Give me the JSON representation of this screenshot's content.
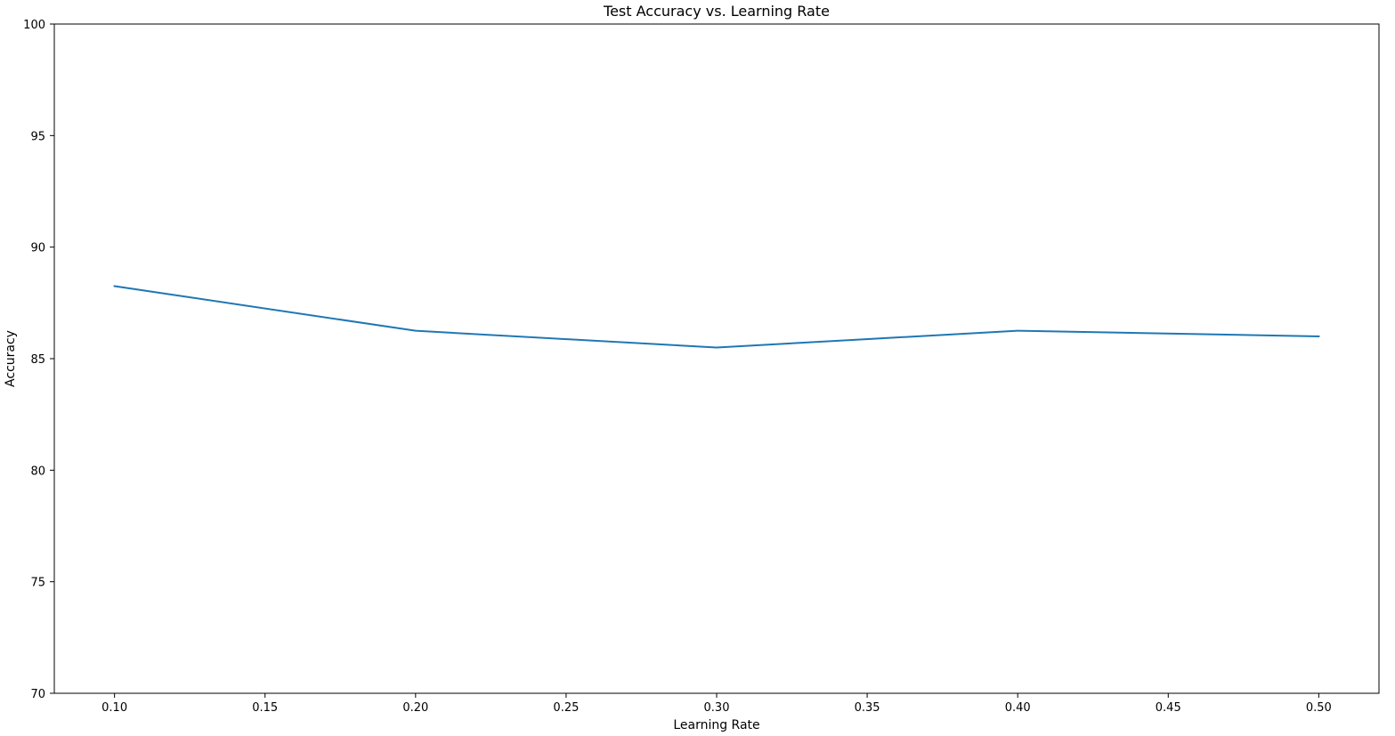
{
  "chart_data": {
    "type": "line",
    "title": "Test Accuracy vs. Learning Rate",
    "xlabel": "Learning Rate",
    "ylabel": "Accuracy",
    "xlim": [
      0.08,
      0.52
    ],
    "ylim": [
      70,
      100
    ],
    "x_ticks": [
      "0.10",
      "0.15",
      "0.20",
      "0.25",
      "0.30",
      "0.35",
      "0.40",
      "0.45",
      "0.50"
    ],
    "y_ticks": [
      "70",
      "75",
      "80",
      "85",
      "90",
      "95",
      "100"
    ],
    "grid": false,
    "legend": "none",
    "series": [
      {
        "x": [
          0.1,
          0.2,
          0.3,
          0.4,
          0.5
        ],
        "values": [
          88.25,
          86.25,
          85.5,
          86.25,
          86.0
        ],
        "color": "#1f77b4"
      }
    ]
  }
}
